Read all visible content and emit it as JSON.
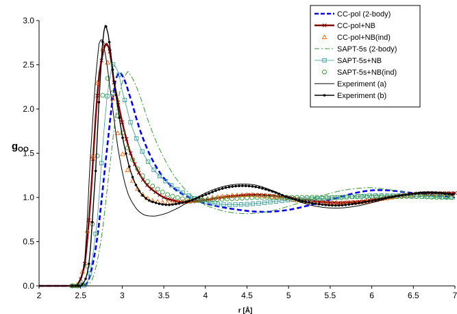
{
  "chart_data": {
    "type": "line",
    "xlabel": "r [Å]",
    "ylabel_main": "g",
    "ylabel_sub": "OO",
    "xlim": [
      2,
      7
    ],
    "ylim": [
      0,
      3
    ],
    "x_ticks": [
      "2",
      "2.5",
      "3",
      "3.5",
      "4",
      "4.5",
      "5",
      "5.5",
      "6",
      "6.5",
      "7"
    ],
    "y_ticks": [
      "0.0",
      "0.5",
      "1.0",
      "1.5",
      "2.0",
      "2.5",
      "3.0"
    ],
    "grid": false,
    "legend_position": "top-right",
    "series": [
      {
        "name": "CC-pol (2-body)",
        "color": "#0000ff",
        "style": "dash",
        "points": [
          [
            2.0,
            0
          ],
          [
            2.5,
            0
          ],
          [
            2.6,
            0.08
          ],
          [
            2.7,
            0.55
          ],
          [
            2.8,
            1.4
          ],
          [
            2.9,
            2.2
          ],
          [
            2.95,
            2.39
          ],
          [
            3.0,
            2.38
          ],
          [
            3.1,
            2.12
          ],
          [
            3.2,
            1.8
          ],
          [
            3.3,
            1.55
          ],
          [
            3.4,
            1.36
          ],
          [
            3.5,
            1.22
          ],
          [
            3.6,
            1.12
          ],
          [
            3.7,
            1.05
          ],
          [
            3.8,
            1.0
          ],
          [
            3.9,
            0.96
          ],
          [
            4.0,
            0.93
          ],
          [
            4.2,
            0.89
          ],
          [
            4.4,
            0.86
          ],
          [
            4.6,
            0.84
          ],
          [
            4.8,
            0.84
          ],
          [
            5.0,
            0.86
          ],
          [
            5.2,
            0.9
          ],
          [
            5.4,
            0.95
          ],
          [
            5.6,
            1.0
          ],
          [
            5.8,
            1.05
          ],
          [
            6.0,
            1.08
          ],
          [
            6.2,
            1.08
          ],
          [
            6.4,
            1.06
          ],
          [
            6.6,
            1.04
          ],
          [
            6.8,
            1.02
          ],
          [
            7.0,
            1.0
          ]
        ]
      },
      {
        "name": "CC-pol+NB",
        "color": "#800000",
        "style": "solid-cross",
        "points": [
          [
            2.0,
            0
          ],
          [
            2.45,
            0
          ],
          [
            2.55,
            0.25
          ],
          [
            2.62,
            1.0
          ],
          [
            2.7,
            2.15
          ],
          [
            2.75,
            2.55
          ],
          [
            2.8,
            2.73
          ],
          [
            2.85,
            2.65
          ],
          [
            2.9,
            2.3
          ],
          [
            3.0,
            1.85
          ],
          [
            3.1,
            1.5
          ],
          [
            3.2,
            1.28
          ],
          [
            3.3,
            1.14
          ],
          [
            3.4,
            1.06
          ],
          [
            3.5,
            1.0
          ],
          [
            3.6,
            0.97
          ],
          [
            3.7,
            0.95
          ],
          [
            3.8,
            0.95
          ],
          [
            4.0,
            0.97
          ],
          [
            4.2,
            1.0
          ],
          [
            4.4,
            1.02
          ],
          [
            4.6,
            1.03
          ],
          [
            4.8,
            1.02
          ],
          [
            5.0,
            1.0
          ],
          [
            5.2,
            0.97
          ],
          [
            5.4,
            0.95
          ],
          [
            5.6,
            0.94
          ],
          [
            5.8,
            0.95
          ],
          [
            6.0,
            0.97
          ],
          [
            6.2,
            1.0
          ],
          [
            6.4,
            1.03
          ],
          [
            6.6,
            1.05
          ],
          [
            6.8,
            1.05
          ],
          [
            7.0,
            1.05
          ]
        ]
      },
      {
        "name": "CC-pol+NB(ind)",
        "color": "#ff6600",
        "style": "triangle",
        "points": [
          [
            2.0,
            0
          ],
          [
            2.45,
            0
          ],
          [
            2.55,
            0.3
          ],
          [
            2.62,
            1.15
          ],
          [
            2.68,
            2.05
          ],
          [
            2.73,
            2.55
          ],
          [
            2.77,
            2.68
          ],
          [
            2.82,
            2.55
          ],
          [
            2.88,
            2.15
          ],
          [
            2.95,
            1.7
          ],
          [
            3.05,
            1.35
          ],
          [
            3.15,
            1.15
          ],
          [
            3.25,
            1.03
          ],
          [
            3.35,
            0.97
          ],
          [
            3.45,
            0.95
          ],
          [
            3.55,
            0.94
          ],
          [
            3.7,
            0.95
          ],
          [
            3.9,
            0.97
          ],
          [
            4.1,
            1.0
          ],
          [
            4.3,
            1.02
          ],
          [
            4.5,
            1.03
          ],
          [
            4.7,
            1.02
          ],
          [
            4.9,
            1.0
          ],
          [
            5.1,
            0.97
          ],
          [
            5.3,
            0.95
          ],
          [
            5.5,
            0.94
          ],
          [
            5.7,
            0.94
          ],
          [
            5.9,
            0.95
          ],
          [
            6.1,
            0.98
          ],
          [
            6.3,
            1.01
          ],
          [
            6.5,
            1.03
          ],
          [
            6.7,
            1.04
          ],
          [
            6.9,
            1.04
          ],
          [
            7.0,
            1.03
          ]
        ]
      },
      {
        "name": "SAPT-5s (2-body)",
        "color": "#339933",
        "style": "dashdot",
        "points": [
          [
            2.0,
            0
          ],
          [
            2.55,
            0
          ],
          [
            2.65,
            0.1
          ],
          [
            2.75,
            0.55
          ],
          [
            2.85,
            1.35
          ],
          [
            2.95,
            2.1
          ],
          [
            3.05,
            2.4
          ],
          [
            3.1,
            2.38
          ],
          [
            3.2,
            2.18
          ],
          [
            3.3,
            1.9
          ],
          [
            3.4,
            1.65
          ],
          [
            3.5,
            1.45
          ],
          [
            3.6,
            1.28
          ],
          [
            3.7,
            1.15
          ],
          [
            3.8,
            1.05
          ],
          [
            3.9,
            0.97
          ],
          [
            4.0,
            0.91
          ],
          [
            4.2,
            0.85
          ],
          [
            4.4,
            0.82
          ],
          [
            4.6,
            0.82
          ],
          [
            4.8,
            0.85
          ],
          [
            5.0,
            0.9
          ],
          [
            5.2,
            0.96
          ],
          [
            5.4,
            1.02
          ],
          [
            5.6,
            1.07
          ],
          [
            5.8,
            1.1
          ],
          [
            6.0,
            1.11
          ],
          [
            6.2,
            1.09
          ],
          [
            6.4,
            1.06
          ],
          [
            6.6,
            1.03
          ],
          [
            6.8,
            1.0
          ],
          [
            7.0,
            0.98
          ]
        ]
      },
      {
        "name": "SAPT-5s+NB",
        "color": "#339999",
        "style": "square",
        "points": [
          [
            2.0,
            0
          ],
          [
            2.5,
            0
          ],
          [
            2.6,
            0.1
          ],
          [
            2.7,
            0.75
          ],
          [
            2.78,
            1.75
          ],
          [
            2.85,
            2.35
          ],
          [
            2.88,
            2.5
          ],
          [
            2.95,
            2.42
          ],
          [
            3.0,
            2.2
          ],
          [
            3.1,
            1.85
          ],
          [
            3.2,
            1.6
          ],
          [
            3.3,
            1.42
          ],
          [
            3.4,
            1.29
          ],
          [
            3.5,
            1.2
          ],
          [
            3.6,
            1.13
          ],
          [
            3.7,
            1.07
          ],
          [
            3.8,
            1.02
          ],
          [
            3.9,
            0.98
          ],
          [
            4.0,
            0.95
          ],
          [
            4.2,
            0.92
          ],
          [
            4.4,
            0.92
          ],
          [
            4.6,
            0.93
          ],
          [
            4.8,
            0.95
          ],
          [
            5.0,
            0.97
          ],
          [
            5.2,
            0.98
          ],
          [
            5.4,
            0.99
          ],
          [
            5.6,
            1.0
          ],
          [
            5.8,
            1.01
          ],
          [
            6.0,
            1.02
          ],
          [
            6.2,
            1.02
          ],
          [
            6.4,
            1.02
          ],
          [
            6.6,
            1.01
          ],
          [
            6.8,
            1.01
          ],
          [
            7.0,
            1.0
          ]
        ]
      },
      {
        "name": "SAPT-5s+NB(ind)",
        "color": "#339933",
        "style": "circle",
        "points": [
          [
            2.0,
            0
          ],
          [
            2.48,
            0
          ],
          [
            2.56,
            0.12
          ],
          [
            2.64,
            0.7
          ],
          [
            2.72,
            1.7
          ],
          [
            2.78,
            2.25
          ],
          [
            2.82,
            2.35
          ],
          [
            2.88,
            2.2
          ],
          [
            2.95,
            1.9
          ],
          [
            3.05,
            1.6
          ],
          [
            3.15,
            1.38
          ],
          [
            3.25,
            1.24
          ],
          [
            3.35,
            1.14
          ],
          [
            3.45,
            1.08
          ],
          [
            3.55,
            1.03
          ],
          [
            3.7,
            0.99
          ],
          [
            3.85,
            0.97
          ],
          [
            4.0,
            0.97
          ],
          [
            4.2,
            0.98
          ],
          [
            4.4,
            0.99
          ],
          [
            4.6,
            1.0
          ],
          [
            4.8,
            1.0
          ],
          [
            5.0,
            1.0
          ],
          [
            5.2,
            1.0
          ],
          [
            5.4,
            1.0
          ],
          [
            5.6,
            1.0
          ],
          [
            5.8,
            1.01
          ],
          [
            6.0,
            1.01
          ],
          [
            6.2,
            1.01
          ],
          [
            6.4,
            1.01
          ],
          [
            6.6,
            1.01
          ],
          [
            6.8,
            1.0
          ],
          [
            7.0,
            1.0
          ]
        ]
      },
      {
        "name": "Experiment (a)",
        "color": "#000000",
        "style": "thin",
        "points": [
          [
            2.0,
            0
          ],
          [
            2.45,
            0
          ],
          [
            2.55,
            0.3
          ],
          [
            2.62,
            1.5
          ],
          [
            2.7,
            2.55
          ],
          [
            2.74,
            2.78
          ],
          [
            2.78,
            2.7
          ],
          [
            2.85,
            2.25
          ],
          [
            2.95,
            1.55
          ],
          [
            3.05,
            1.1
          ],
          [
            3.15,
            0.9
          ],
          [
            3.25,
            0.81
          ],
          [
            3.35,
            0.79
          ],
          [
            3.45,
            0.8
          ],
          [
            3.6,
            0.85
          ],
          [
            3.8,
            0.95
          ],
          [
            4.0,
            1.05
          ],
          [
            4.2,
            1.12
          ],
          [
            4.4,
            1.15
          ],
          [
            4.6,
            1.14
          ],
          [
            4.8,
            1.08
          ],
          [
            5.0,
            1.0
          ],
          [
            5.2,
            0.93
          ],
          [
            5.4,
            0.89
          ],
          [
            5.6,
            0.88
          ],
          [
            5.8,
            0.9
          ],
          [
            6.0,
            0.94
          ],
          [
            6.2,
            0.99
          ],
          [
            6.4,
            1.03
          ],
          [
            6.6,
            1.06
          ],
          [
            6.8,
            1.06
          ],
          [
            7.0,
            1.04
          ]
        ]
      },
      {
        "name": "Experiment (b)",
        "color": "#000000",
        "style": "solid-dot",
        "points": [
          [
            2.0,
            0
          ],
          [
            2.5,
            0
          ],
          [
            2.6,
            0.25
          ],
          [
            2.68,
            1.3
          ],
          [
            2.74,
            2.4
          ],
          [
            2.78,
            2.88
          ],
          [
            2.81,
            2.92
          ],
          [
            2.85,
            2.72
          ],
          [
            2.9,
            2.3
          ],
          [
            3.0,
            1.7
          ],
          [
            3.1,
            1.3
          ],
          [
            3.2,
            1.08
          ],
          [
            3.3,
            0.98
          ],
          [
            3.4,
            0.94
          ],
          [
            3.5,
            0.92
          ],
          [
            3.6,
            0.92
          ],
          [
            3.8,
            0.96
          ],
          [
            4.0,
            1.03
          ],
          [
            4.2,
            1.1
          ],
          [
            4.4,
            1.13
          ],
          [
            4.6,
            1.12
          ],
          [
            4.8,
            1.07
          ],
          [
            5.0,
            1.0
          ],
          [
            5.2,
            0.95
          ],
          [
            5.4,
            0.92
          ],
          [
            5.6,
            0.91
          ],
          [
            5.8,
            0.93
          ],
          [
            6.0,
            0.96
          ],
          [
            6.2,
            1.0
          ],
          [
            6.4,
            1.03
          ],
          [
            6.6,
            1.05
          ],
          [
            6.8,
            1.05
          ],
          [
            7.0,
            1.03
          ]
        ]
      }
    ]
  }
}
